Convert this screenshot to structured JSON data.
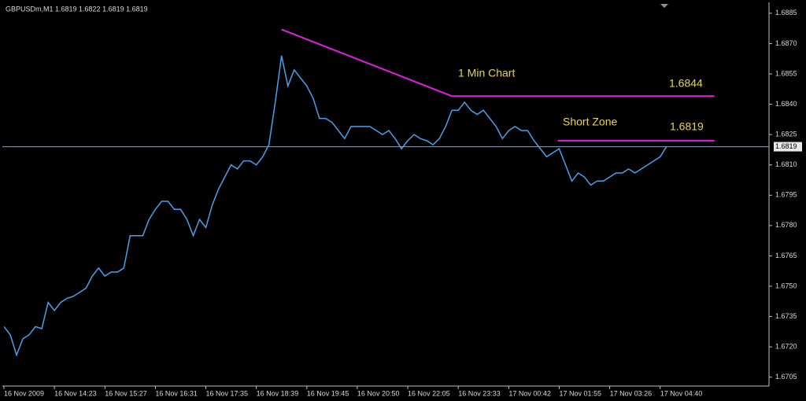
{
  "chart_data": {
    "type": "line",
    "title": "GBPUSDm,M1  1.6819 1.6822 1.6819 1.6819",
    "x": [
      0,
      1,
      2,
      3,
      4,
      5,
      6,
      7,
      8,
      9,
      10,
      11,
      12,
      13,
      14,
      15,
      16,
      17,
      18,
      19,
      20,
      21,
      22,
      23,
      24,
      25,
      26,
      27,
      28,
      29,
      30,
      31,
      32,
      33,
      34,
      35,
      36,
      37,
      38,
      39,
      40,
      41,
      42,
      43,
      44,
      45,
      46,
      47,
      48,
      49,
      50,
      51,
      52,
      53,
      54,
      55,
      56,
      57,
      58,
      59,
      60,
      61,
      62,
      63,
      64,
      65,
      66,
      67,
      68,
      69,
      70,
      71,
      72,
      73,
      74,
      75,
      76,
      77,
      78,
      79,
      80,
      81,
      82,
      83,
      84,
      85,
      86,
      87,
      88,
      89,
      90,
      91,
      92,
      93,
      94,
      95,
      96,
      97,
      98,
      99,
      100,
      101,
      102,
      103,
      104,
      105
    ],
    "series": [
      {
        "name": "GBPUSDm",
        "color": "#4aa0e8",
        "values": [
          1.673,
          1.6726,
          1.6716,
          1.6724,
          1.6726,
          1.673,
          1.6729,
          1.6742,
          1.6738,
          1.6742,
          1.6744,
          1.6745,
          1.6747,
          1.6749,
          1.6755,
          1.6759,
          1.6755,
          1.6757,
          1.6757,
          1.6759,
          1.6775,
          1.6775,
          1.6775,
          1.6783,
          1.6788,
          1.6792,
          1.6792,
          1.6788,
          1.6788,
          1.6783,
          1.6775,
          1.6783,
          1.6779,
          1.679,
          1.6798,
          1.6804,
          1.681,
          1.6808,
          1.6812,
          1.6812,
          1.681,
          1.6814,
          1.682,
          1.6841,
          1.6864,
          1.6849,
          1.6857,
          1.6853,
          1.6849,
          1.6843,
          1.6833,
          1.6833,
          1.6831,
          1.6827,
          1.6823,
          1.6829,
          1.6829,
          1.6829,
          1.6829,
          1.6827,
          1.6825,
          1.6827,
          1.6823,
          1.6818,
          1.6822,
          1.6825,
          1.6823,
          1.6822,
          1.682,
          1.6823,
          1.6829,
          1.6837,
          1.6837,
          1.6841,
          1.6837,
          1.6835,
          1.6837,
          1.6833,
          1.6829,
          1.6823,
          1.6827,
          1.6829,
          1.6827,
          1.6827,
          1.6822,
          1.6818,
          1.6814,
          1.6816,
          1.6818,
          1.681,
          1.6802,
          1.6806,
          1.6804,
          1.68,
          1.6802,
          1.6802,
          1.6804,
          1.6806,
          1.6806,
          1.6808,
          1.6806,
          1.6808,
          1.681,
          1.6812,
          1.6814,
          1.6819
        ]
      }
    ],
    "xlim": [
      0,
      121
    ],
    "xticks": [
      {
        "value": 0,
        "label": "16 Nov 2009"
      },
      {
        "value": 8,
        "label": "16 Nov 14:23"
      },
      {
        "value": 16,
        "label": "16 Nov 15:27"
      },
      {
        "value": 24,
        "label": "16 Nov 16:31"
      },
      {
        "value": 32,
        "label": "16 Nov 17:35"
      },
      {
        "value": 40,
        "label": "16 Nov 18:39"
      },
      {
        "value": 48,
        "label": "16 Nov 19:45"
      },
      {
        "value": 56,
        "label": "16 Nov 20:50"
      },
      {
        "value": 64,
        "label": "16 Nov 22:05"
      },
      {
        "value": 72,
        "label": "16 Nov 23:33"
      },
      {
        "value": 80,
        "label": "17 Nov 00:42"
      },
      {
        "value": 88,
        "label": "17 Nov 01:55"
      },
      {
        "value": 96,
        "label": "17 Nov 03:26"
      },
      {
        "value": 104,
        "label": "17 Nov 04:40"
      }
    ],
    "ylim": [
      1.6701,
      1.689
    ],
    "yticks": [
      1.6705,
      {
        "value": 1.672,
        "label": "1.6720"
      },
      1.6735,
      {
        "value": 1.675,
        "label": "1.6750"
      },
      1.6765,
      {
        "value": 1.678,
        "label": "1.6780"
      },
      1.6795,
      {
        "value": 1.681,
        "label": "1.6810"
      },
      1.6825,
      {
        "value": 1.684,
        "label": "1.6840"
      },
      1.6855,
      {
        "value": 1.687,
        "label": "1.6870"
      },
      1.6885
    ],
    "grid": false,
    "current_price": 1.6819,
    "trend_lines": [
      {
        "x": [
          44,
          71
        ],
        "y": [
          1.6877,
          1.6844
        ]
      },
      {
        "x": [
          71,
          112.6
        ],
        "y": [
          1.6844,
          1.6844
        ]
      },
      {
        "x": [
          87.75,
          112.6
        ],
        "y": [
          1.6822,
          1.6822
        ]
      }
    ],
    "trend_color": "#e31ee3",
    "annotations": [
      "1 Min Chart",
      "1.6844",
      "Short Zone",
      "1.6819"
    ]
  }
}
